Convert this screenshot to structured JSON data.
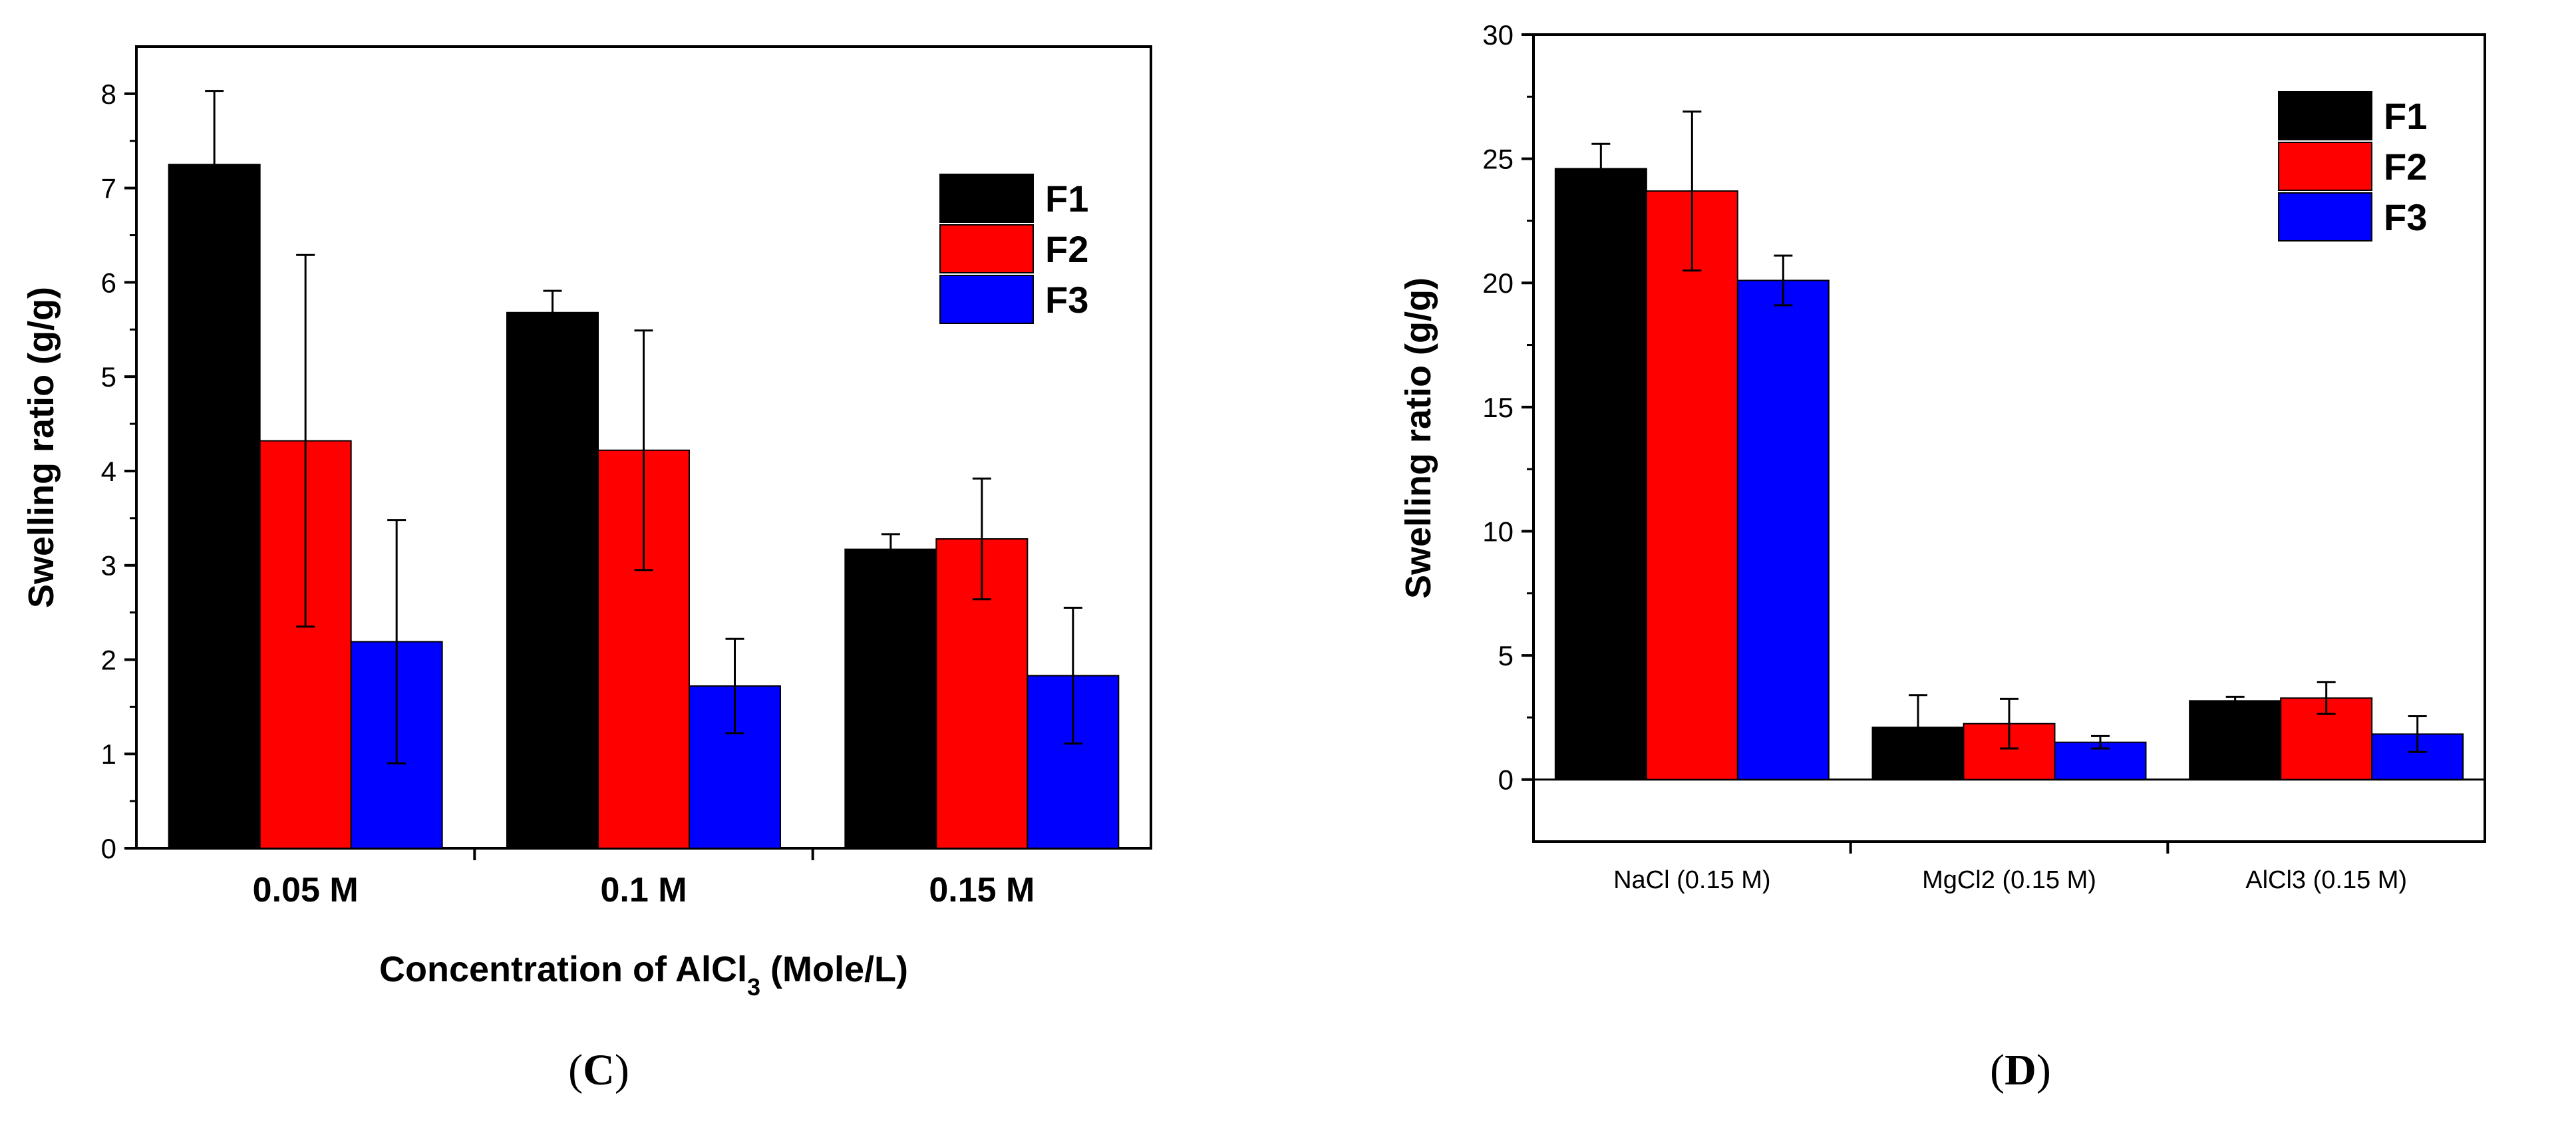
{
  "colors": {
    "F1": "#000000",
    "F2": "#ff0000",
    "F3": "#0000ff"
  },
  "chart_data": [
    {
      "type": "bar",
      "panel_label_parts": [
        "(",
        "C",
        ")"
      ],
      "ylabel": "Swelling ratio (g/g)",
      "xlabel_parts": [
        "Concentration of AlCl",
        "3",
        " (Mole/L)"
      ],
      "categories": [
        "0.05 M",
        "0.1 M",
        "0.15 M"
      ],
      "series": [
        {
          "name": "F1",
          "values": [
            7.25,
            5.68,
            3.17
          ],
          "errors": [
            0.78,
            0.23,
            0.16
          ]
        },
        {
          "name": "F2",
          "values": [
            4.32,
            4.22,
            3.28
          ],
          "errors": [
            1.97,
            1.27,
            0.64
          ]
        },
        {
          "name": "F3",
          "values": [
            2.19,
            1.72,
            1.83
          ],
          "errors": [
            1.29,
            0.5,
            0.72
          ]
        }
      ],
      "ylim": [
        0,
        8.5
      ],
      "yticks": [
        "0",
        "1",
        "2",
        "3",
        "4",
        "5",
        "6",
        "7",
        "8"
      ],
      "grid": false,
      "legend": "top-right"
    },
    {
      "type": "bar",
      "panel_label_parts": [
        "(",
        "D",
        ")"
      ],
      "ylabel": "Swelling ratio (g/g)",
      "xlabel_parts": [],
      "categories": [
        "NaCl (0.15 M)",
        "MgCl2 (0.15 M)",
        "AlCl3 (0.15 M)"
      ],
      "series": [
        {
          "name": "F1",
          "values": [
            24.6,
            2.1,
            3.17
          ],
          "errors": [
            1.0,
            1.3,
            0.16
          ]
        },
        {
          "name": "F2",
          "values": [
            23.7,
            2.25,
            3.28
          ],
          "errors": [
            3.2,
            1.0,
            0.64
          ]
        },
        {
          "name": "F3",
          "values": [
            20.1,
            1.5,
            1.83
          ],
          "errors": [
            1.0,
            0.25,
            0.72
          ]
        }
      ],
      "ylim": [
        -2.5,
        30
      ],
      "yticks": [
        "0",
        "5",
        "10",
        "15",
        "20",
        "25",
        "30"
      ],
      "zero_line": true,
      "grid": false,
      "legend": "top-right"
    }
  ]
}
